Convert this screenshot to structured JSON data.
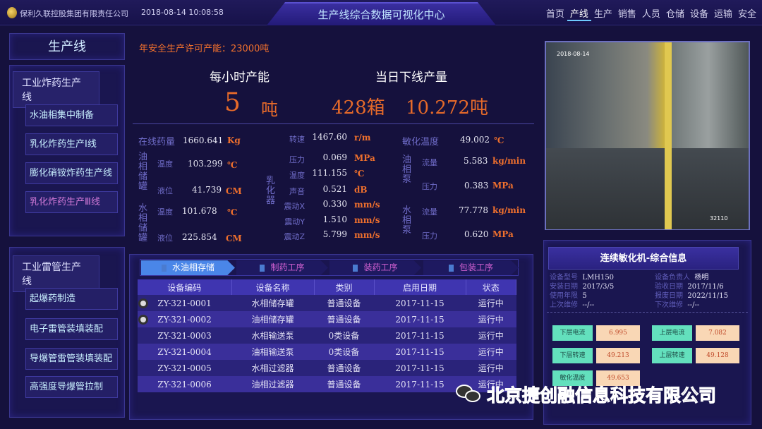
{
  "header": {
    "company": "保利久联控股集团有限责任公司",
    "datetime": "2018-08-14 10:08:58",
    "title": "生产线综合数据可视化中心",
    "nav": [
      "首页",
      "产线",
      "生产",
      "销售",
      "人员",
      "仓储",
      "设备",
      "运输",
      "安全"
    ],
    "active_nav": 1
  },
  "sidebar": {
    "title": "生产线",
    "groups": [
      {
        "title": "工业炸药生产线",
        "items": [
          "水油相集中制备",
          "乳化炸药生产Ⅰ线",
          "膨化硝铵炸药生产线",
          "乳化炸药生产Ⅲ线"
        ]
      },
      {
        "title": "工业雷管生产线",
        "items": [
          "起爆药制造",
          "电子雷管装填装配",
          "导爆管雷管装填装配",
          "高强度导爆管拉制"
        ]
      }
    ]
  },
  "summary": {
    "license": "年安全生产许可产能：23000吨",
    "hourly_label": "每小时产能",
    "hourly_value": "5",
    "hourly_unit": "吨",
    "daily_label": "当日下线产量",
    "daily_boxes": "428箱",
    "daily_tons": "10.272吨"
  },
  "metrics": {
    "online": {
      "label": "在线药量",
      "value": "1660.641",
      "unit": "Kg"
    },
    "oil_tank": {
      "label": "油相储罐",
      "temp_label": "温度",
      "temp": "103.299",
      "temp_unit": "℃",
      "level_label": "液位",
      "level": "41.739",
      "level_unit": "CM"
    },
    "water_tank": {
      "label": "水相储罐",
      "temp_label": "温度",
      "temp": "101.678",
      "temp_unit": "℃",
      "level_label": "液位",
      "level": "225.854",
      "level_unit": "CM"
    },
    "emulsifier": {
      "label": "乳化器",
      "rows": [
        {
          "label": "转速",
          "value": "1467.60",
          "unit": "r/m"
        },
        {
          "label": "压力",
          "value": "0.069",
          "unit": "MPa"
        },
        {
          "label": "温度",
          "value": "111.155",
          "unit": "℃"
        },
        {
          "label": "声音",
          "value": "0.521",
          "unit": "dB"
        },
        {
          "label": "震动X",
          "value": "0.330",
          "unit": "mm/s"
        },
        {
          "label": "震动Y",
          "value": "1.510",
          "unit": "mm/s"
        },
        {
          "label": "震动Z",
          "value": "5.799",
          "unit": "mm/s"
        }
      ]
    },
    "sens_temp": {
      "label": "敏化温度",
      "value": "49.002",
      "unit": "℃"
    },
    "oil_pump": {
      "label": "油相泵",
      "flow_label": "流量",
      "flow": "5.583",
      "flow_unit": "kg/min",
      "pres_label": "压力",
      "pres": "0.383",
      "pres_unit": "MPa"
    },
    "water_pump": {
      "label": "水相泵",
      "flow_label": "流量",
      "flow": "77.778",
      "flow_unit": "kg/min",
      "pres_label": "压力",
      "pres": "0.620",
      "pres_unit": "MPa"
    }
  },
  "process_tabs": [
    "水油相存储",
    "制药工序",
    "装药工序",
    "包装工序"
  ],
  "table": {
    "headers": [
      "设备编码",
      "设备名称",
      "类别",
      "启用日期",
      "状态"
    ],
    "rows": [
      [
        "ZY-321-0001",
        "水相储存罐",
        "普通设备",
        "2017-11-15",
        "运行中"
      ],
      [
        "ZY-321-0002",
        "油相储存罐",
        "普通设备",
        "2017-11-15",
        "运行中"
      ],
      [
        "ZY-321-0003",
        "水相输送泵",
        "0类设备",
        "2017-11-15",
        "运行中"
      ],
      [
        "ZY-321-0004",
        "油相输送泵",
        "0类设备",
        "2017-11-15",
        "运行中"
      ],
      [
        "ZY-321-0005",
        "水相过滤器",
        "普通设备",
        "2017-11-15",
        "运行中"
      ],
      [
        "ZY-321-0006",
        "油相过滤器",
        "普通设备",
        "2017-11-15",
        "运行中"
      ]
    ]
  },
  "camera": {
    "timestamp": "2018-08-14",
    "label": "32110"
  },
  "info": {
    "title": "连续敏化机-综合信息",
    "fields": [
      [
        "设备型号",
        "LMH150"
      ],
      [
        "设备负责人",
        "杨明"
      ],
      [
        "安装日期",
        "2017/3/5"
      ],
      [
        "验收日期",
        "2017/11/6"
      ],
      [
        "使用年限",
        "5"
      ],
      [
        "报废日期",
        "2022/11/15"
      ],
      [
        "上次维修",
        "--/--"
      ],
      [
        "下次维修",
        "--/--"
      ]
    ],
    "readings": [
      [
        "下层电流",
        "6.995"
      ],
      [
        "上层电流",
        "7.082"
      ],
      [
        "下层转速",
        "49.213"
      ],
      [
        "上层转速",
        "49.128"
      ],
      [
        "敏化温度",
        "49.653"
      ]
    ]
  },
  "watermark": "北京捷创融信息科技有限公司"
}
